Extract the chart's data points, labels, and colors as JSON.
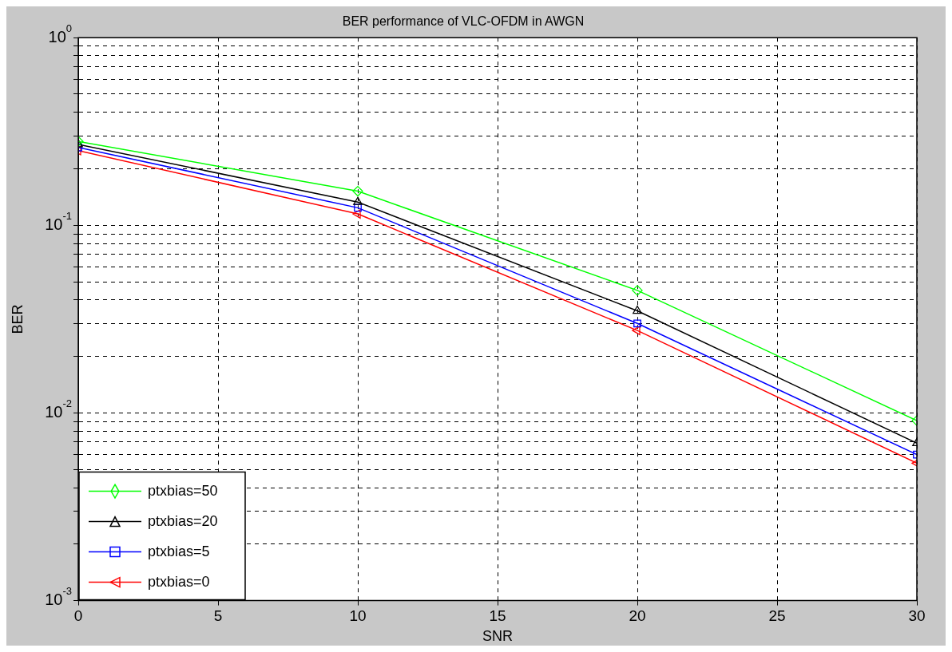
{
  "chart_data": {
    "type": "line",
    "title": "BER performance of VLC-OFDM in AWGN",
    "xlabel": "SNR",
    "ylabel": "BER",
    "x": [
      0,
      10,
      20,
      30
    ],
    "series": [
      {
        "name": "ptxbias=50",
        "color": "#00ff00",
        "marker": "diamond",
        "values": [
          0.28,
          0.152,
          0.045,
          0.0091
        ]
      },
      {
        "name": "ptxbias=20",
        "color": "#000000",
        "marker": "triangle",
        "values": [
          0.27,
          0.133,
          0.035,
          0.0069
        ]
      },
      {
        "name": "ptxbias=5",
        "color": "#0000ff",
        "marker": "square",
        "values": [
          0.26,
          0.124,
          0.03,
          0.006
        ]
      },
      {
        "name": "ptxbias=0",
        "color": "#ff0000",
        "marker": "triangle-left",
        "values": [
          0.25,
          0.115,
          0.0275,
          0.0054
        ]
      }
    ],
    "log": "y",
    "xlim": [
      0,
      30
    ],
    "xticks": [
      0,
      5,
      10,
      15,
      20,
      25,
      30
    ],
    "ylim": [
      0.001,
      1
    ],
    "yticks": [
      {
        "value": 0.001,
        "label": "10$^{-3}$"
      },
      {
        "value": 0.002,
        "label": null
      },
      {
        "value": 0.003,
        "label": null
      },
      {
        "value": 0.004,
        "label": null
      },
      {
        "value": 0.005,
        "label": null
      },
      {
        "value": 0.006,
        "label": null
      },
      {
        "value": 0.007,
        "label": null
      },
      {
        "value": 0.008,
        "label": null
      },
      {
        "value": 0.009,
        "label": null
      },
      {
        "value": 0.01,
        "label": "10$^{-2}$"
      },
      {
        "value": 0.02,
        "label": null
      },
      {
        "value": 0.03,
        "label": null
      },
      {
        "value": 0.04,
        "label": null
      },
      {
        "value": 0.05,
        "label": null
      },
      {
        "value": 0.06,
        "label": null
      },
      {
        "value": 0.07,
        "label": null
      },
      {
        "value": 0.08,
        "label": null
      },
      {
        "value": 0.09,
        "label": null
      },
      {
        "value": 0.1,
        "label": "10$^{-1}$"
      },
      {
        "value": 0.2,
        "label": null
      },
      {
        "value": 0.3,
        "label": null
      },
      {
        "value": 0.4,
        "label": null
      },
      {
        "value": 0.5,
        "label": null
      },
      {
        "value": 0.6,
        "label": null
      },
      {
        "value": 0.7,
        "label": null
      },
      {
        "value": 0.8,
        "label": null
      },
      {
        "value": 0.9,
        "label": null
      },
      {
        "value": 1,
        "label": "10$^{0}$"
      }
    ],
    "grid": true,
    "legend": "bottom left",
    "line_style": "solid"
  }
}
